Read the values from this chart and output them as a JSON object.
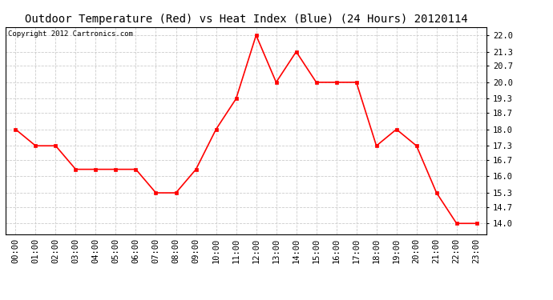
{
  "title": "Outdoor Temperature (Red) vs Heat Index (Blue) (24 Hours) 20120114",
  "copyright": "Copyright 2012 Cartronics.com",
  "x_labels": [
    "00:00",
    "01:00",
    "02:00",
    "03:00",
    "04:00",
    "05:00",
    "06:00",
    "07:00",
    "08:00",
    "09:00",
    "10:00",
    "11:00",
    "12:00",
    "13:00",
    "14:00",
    "15:00",
    "16:00",
    "17:00",
    "18:00",
    "19:00",
    "20:00",
    "21:00",
    "22:00",
    "23:00"
  ],
  "temp_values": [
    18.0,
    17.3,
    17.3,
    16.3,
    16.3,
    16.3,
    16.3,
    15.3,
    15.3,
    16.3,
    18.0,
    19.3,
    22.0,
    20.0,
    21.3,
    20.0,
    20.0,
    20.0,
    17.3,
    18.0,
    17.3,
    15.3,
    14.0,
    14.0
  ],
  "ylim_min": 13.55,
  "ylim_max": 22.35,
  "yticks": [
    14.0,
    14.7,
    15.3,
    16.0,
    16.7,
    17.3,
    18.0,
    18.7,
    19.3,
    20.0,
    20.7,
    21.3,
    22.0
  ],
  "line_color_temp": "#ff0000",
  "marker_size": 2.5,
  "line_width": 1.2,
  "bg_color": "#ffffff",
  "grid_color": "#cccccc",
  "title_fontsize": 10,
  "copyright_fontsize": 6.5,
  "tick_fontsize": 7.5
}
